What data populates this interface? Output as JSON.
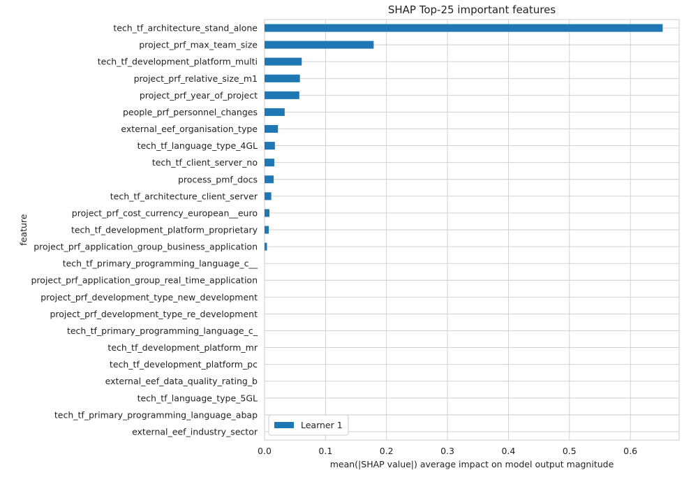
{
  "chart_data": {
    "type": "bar",
    "orientation": "horizontal",
    "title": "SHAP Top-25 important features",
    "xlabel": "mean(|SHAP value|) average impact on model output magnitude",
    "ylabel": "feature",
    "xlim": [
      0,
      0.68
    ],
    "xticks": [
      0.0,
      0.1,
      0.2,
      0.3,
      0.4,
      0.5,
      0.6
    ],
    "xtick_labels": [
      "0.0",
      "0.1",
      "0.2",
      "0.3",
      "0.4",
      "0.5",
      "0.6"
    ],
    "grid": true,
    "legend_position": "lower-left",
    "bar_color": "#1f77b4",
    "categories": [
      "tech_tf_architecture_stand_alone",
      "project_prf_max_team_size",
      "tech_tf_development_platform_multi",
      "project_prf_relative_size_m1",
      "project_prf_year_of_project",
      "people_prf_personnel_changes",
      "external_eef_organisation_type",
      "tech_tf_language_type_4GL",
      "tech_tf_client_server_no",
      "process_pmf_docs",
      "tech_tf_architecture_client_server",
      "project_prf_cost_currency_european__euro",
      "tech_tf_development_platform_proprietary",
      "project_prf_application_group_business_application",
      "tech_tf_primary_programming_language_c__",
      "project_prf_application_group_real_time_application",
      "project_prf_development_type_new_development",
      "project_prf_development_type_re_development",
      "tech_tf_primary_programming_language_c_",
      "tech_tf_development_platform_mr",
      "tech_tf_development_platform_pc",
      "external_eef_data_quality_rating_b",
      "tech_tf_language_type_5GL",
      "tech_tf_primary_programming_language_abap",
      "external_eef_industry_sector"
    ],
    "series": [
      {
        "name": "Learner 1",
        "values": [
          0.653,
          0.179,
          0.061,
          0.058,
          0.057,
          0.033,
          0.022,
          0.017,
          0.016,
          0.015,
          0.011,
          0.008,
          0.007,
          0.004,
          0.0,
          0.0,
          0.0,
          0.0,
          0.0,
          0.0,
          0.0,
          0.0,
          0.0,
          0.0,
          0.0
        ]
      }
    ]
  }
}
